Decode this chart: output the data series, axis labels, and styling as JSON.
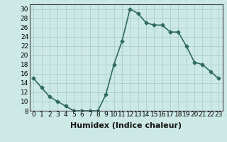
{
  "x": [
    0,
    1,
    2,
    3,
    4,
    5,
    6,
    7,
    8,
    9,
    10,
    11,
    12,
    13,
    14,
    15,
    16,
    17,
    18,
    19,
    20,
    21,
    22,
    23
  ],
  "y": [
    15,
    13,
    11,
    10,
    9,
    8,
    8,
    8,
    8,
    11.5,
    18,
    23,
    30,
    29,
    27,
    26.5,
    26.5,
    25,
    25,
    22,
    18.5,
    18,
    16.5,
    15
  ],
  "line_color": "#2e6b5e",
  "marker": "D",
  "marker_size": 2.5,
  "linewidth": 1.2,
  "xlabel": "Humidex (Indice chaleur)",
  "ylabel": "",
  "xlim": [
    -0.5,
    23.5
  ],
  "ylim": [
    8,
    31
  ],
  "yticks": [
    8,
    10,
    12,
    14,
    16,
    18,
    20,
    22,
    24,
    26,
    28,
    30
  ],
  "xticks": [
    0,
    1,
    2,
    3,
    4,
    5,
    6,
    7,
    8,
    9,
    10,
    11,
    12,
    13,
    14,
    15,
    16,
    17,
    18,
    19,
    20,
    21,
    22,
    23
  ],
  "xtick_labels": [
    "0",
    "1",
    "2",
    "3",
    "4",
    "5",
    "6",
    "7",
    "8",
    "9",
    "10",
    "11",
    "12",
    "13",
    "14",
    "15",
    "16",
    "17",
    "18",
    "19",
    "20",
    "21",
    "22",
    "23"
  ],
  "background_color": "#cce9e5",
  "grid_color": "#aacfcb",
  "tick_fontsize": 6.5,
  "xlabel_fontsize": 8
}
